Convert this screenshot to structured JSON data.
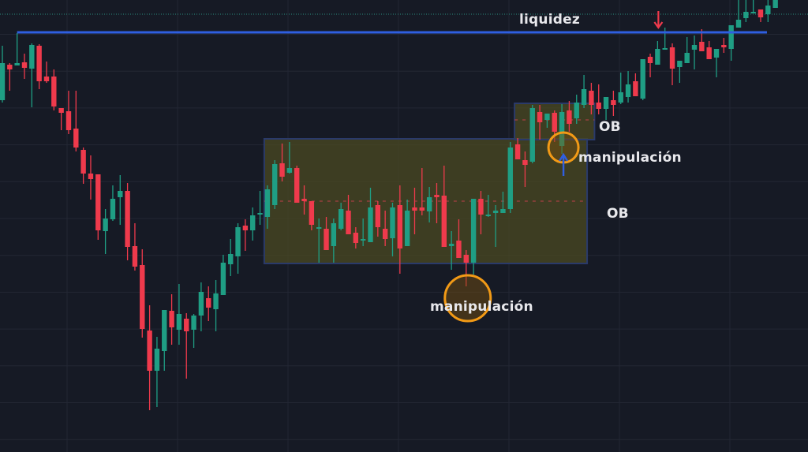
{
  "chart_data": {
    "type": "candlestick",
    "title": "",
    "xlabel": "",
    "ylabel": "",
    "ylim": [
      2.7,
      60
    ],
    "grid": true,
    "colors": {
      "up": "#1f9e84",
      "down": "#ef3a4c",
      "background": "#161a25",
      "grid": "#232734",
      "liquidity_line": "#2f5fe0",
      "zone_fill": "#4b4a22",
      "zone_border": "#2a3a6a",
      "circle": "#f29a16",
      "arrow_up": "#2f5fe0",
      "arrow_down": "#ef3a4c"
    },
    "candles": [
      [
        47.3,
        54.2,
        47.0,
        52.0
      ],
      [
        51.8,
        52.0,
        48.5,
        51.2
      ],
      [
        51.7,
        55.8,
        51.7,
        52.0
      ],
      [
        52.1,
        53.2,
        50.0,
        51.4
      ],
      [
        51.3,
        54.5,
        46.4,
        54.3
      ],
      [
        54.2,
        54.4,
        48.7,
        49.7
      ],
      [
        50.3,
        52.2,
        49.5,
        49.7
      ],
      [
        50.3,
        51.2,
        46.0,
        46.5
      ],
      [
        46.3,
        46.3,
        43.5,
        45.7
      ],
      [
        45.9,
        48.5,
        43.0,
        43.5
      ],
      [
        43.7,
        48.5,
        40.8,
        41.3
      ],
      [
        41.0,
        41.3,
        36.7,
        38.0
      ],
      [
        38.0,
        40.3,
        34.7,
        37.3
      ],
      [
        37.9,
        37.9,
        29.6,
        30.8
      ],
      [
        30.7,
        33.5,
        27.8,
        32.3
      ],
      [
        32.2,
        36.5,
        32.0,
        34.8
      ],
      [
        35.0,
        37.8,
        31.5,
        35.8
      ],
      [
        35.8,
        36.8,
        27.0,
        28.7
      ],
      [
        28.8,
        31.7,
        25.7,
        26.2
      ],
      [
        26.4,
        28.4,
        17.2,
        18.3
      ],
      [
        18.1,
        21.3,
        8.0,
        13.0
      ],
      [
        13.0,
        17.3,
        8.4,
        15.8
      ],
      [
        15.5,
        20.7,
        13.0,
        20.7
      ],
      [
        20.6,
        22.7,
        16.3,
        18.5
      ],
      [
        18.2,
        24.0,
        16.3,
        20.2
      ],
      [
        19.6,
        20.3,
        12.0,
        18.0
      ],
      [
        18.2,
        20.2,
        15.9,
        20.0
      ],
      [
        20.0,
        24.2,
        18.0,
        23.0
      ],
      [
        22.2,
        23.7,
        19.3,
        21.0
      ],
      [
        20.8,
        24.5,
        18.0,
        22.8
      ],
      [
        22.6,
        27.7,
        22.6,
        26.7
      ],
      [
        26.5,
        29.7,
        25.0,
        27.8
      ],
      [
        27.5,
        31.7,
        25.3,
        31.2
      ],
      [
        31.4,
        32.2,
        28.2,
        30.8
      ],
      [
        30.8,
        33.7,
        29.5,
        32.7
      ],
      [
        32.8,
        35.8,
        31.5,
        33.0
      ],
      [
        32.5,
        36.5,
        31.0,
        36.0
      ],
      [
        34.0,
        39.7,
        33.5,
        39.2
      ],
      [
        39.3,
        41.8,
        37.0,
        37.6
      ],
      [
        38.1,
        42.0,
        38.0,
        38.7
      ],
      [
        38.7,
        39.0,
        34.3,
        34.3
      ],
      [
        34.8,
        36.5,
        32.8,
        34.5
      ],
      [
        34.5,
        34.5,
        30.8,
        31.5
      ],
      [
        31.0,
        32.3,
        26.7,
        31.2
      ],
      [
        31.0,
        32.5,
        28.3,
        28.3
      ],
      [
        28.8,
        32.3,
        26.7,
        31.7
      ],
      [
        31.0,
        34.3,
        30.8,
        33.5
      ],
      [
        33.3,
        35.3,
        30.3,
        30.3
      ],
      [
        30.5,
        31.2,
        28.5,
        29.2
      ],
      [
        29.5,
        32.3,
        28.8,
        29.7
      ],
      [
        29.3,
        36.2,
        29.3,
        33.7
      ],
      [
        34.0,
        34.5,
        30.0,
        31.2
      ],
      [
        31.0,
        33.3,
        28.8,
        29.7
      ],
      [
        29.8,
        34.3,
        27.5,
        33.7
      ],
      [
        34.0,
        36.5,
        25.3,
        28.5
      ],
      [
        28.8,
        34.7,
        28.8,
        33.3
      ],
      [
        33.7,
        36.2,
        30.3,
        33.3
      ],
      [
        33.7,
        38.7,
        32.7,
        33.3
      ],
      [
        33.2,
        36.3,
        31.8,
        35.0
      ],
      [
        35.3,
        36.8,
        31.7,
        35.0
      ],
      [
        35.2,
        39.0,
        28.7,
        28.7
      ],
      [
        28.8,
        30.7,
        25.8,
        29.1
      ],
      [
        29.5,
        32.2,
        27.3,
        27.3
      ],
      [
        27.7,
        28.3,
        23.7,
        26.7
      ],
      [
        26.7,
        34.8,
        25.2,
        34.8
      ],
      [
        34.8,
        35.8,
        30.3,
        32.8
      ],
      [
        32.6,
        35.3,
        32.5,
        32.8
      ],
      [
        33.0,
        34.0,
        28.7,
        33.3
      ],
      [
        33.0,
        35.7,
        33.0,
        33.5
      ],
      [
        33.5,
        42.0,
        33.0,
        41.3
      ],
      [
        41.7,
        42.5,
        39.8,
        39.8
      ],
      [
        39.7,
        40.8,
        36.3,
        39.1
      ],
      [
        39.5,
        46.7,
        39.3,
        46.3
      ],
      [
        45.8,
        46.7,
        42.3,
        44.5
      ],
      [
        44.8,
        45.6,
        43.8,
        45.6
      ],
      [
        45.7,
        46.0,
        42.0,
        43.3
      ],
      [
        41.5,
        46.8,
        40.5,
        45.8
      ],
      [
        46.0,
        47.2,
        43.3,
        44.3
      ],
      [
        45.0,
        48.0,
        44.3,
        47.0
      ],
      [
        46.7,
        50.5,
        46.3,
        48.7
      ],
      [
        48.5,
        49.5,
        45.5,
        46.7
      ],
      [
        47.0,
        49.3,
        45.5,
        46.2
      ],
      [
        46.2,
        47.7,
        44.8,
        47.7
      ],
      [
        47.3,
        48.5,
        45.3,
        46.7
      ],
      [
        47.0,
        50.8,
        46.8,
        48.3
      ],
      [
        47.7,
        51.0,
        47.0,
        49.3
      ],
      [
        49.7,
        50.7,
        47.8,
        47.8
      ],
      [
        47.5,
        52.5,
        47.3,
        52.5
      ],
      [
        52.8,
        53.2,
        50.2,
        52.0
      ],
      [
        51.8,
        54.8,
        51.8,
        53.8
      ],
      [
        53.7,
        56.5,
        53.7,
        53.9
      ],
      [
        54.0,
        54.5,
        49.2,
        51.3
      ],
      [
        51.5,
        52.3,
        49.5,
        52.3
      ],
      [
        52.0,
        55.3,
        52.0,
        53.3
      ],
      [
        53.7,
        55.5,
        51.2,
        54.3
      ],
      [
        54.7,
        56.3,
        53.5,
        53.5
      ],
      [
        54.0,
        54.8,
        52.5,
        52.5
      ],
      [
        52.7,
        53.8,
        50.2,
        53.8
      ],
      [
        54.3,
        55.2,
        53.3,
        54.0
      ],
      [
        53.8,
        56.8,
        52.3,
        56.8
      ],
      [
        56.5,
        60.0,
        56.5,
        57.5
      ],
      [
        57.7,
        60.0,
        57.2,
        58.5
      ],
      [
        58.3,
        60.0,
        58.3,
        58.5
      ],
      [
        58.8,
        58.8,
        57.2,
        57.8
      ],
      [
        58.2,
        60.0,
        57.2,
        59.3
      ],
      [
        59.0,
        60.0,
        59.0,
        60.0
      ]
    ],
    "candle_fields": [
      "open",
      "high",
      "low",
      "close"
    ],
    "annotations": {
      "liquidity_line": {
        "price": 55.9,
        "from_candle": 2,
        "to_candle": 103,
        "label": "liquidez"
      },
      "dotted_level": {
        "price": 58.2
      },
      "sweep_arrow": {
        "candle": 89,
        "direction": "down"
      },
      "zones": [
        {
          "from_candle": 36,
          "to_candle": 79,
          "top": 42.4,
          "bottom": 26.6,
          "mid": 34.5,
          "label": "OB"
        },
        {
          "from_candle": 70,
          "to_candle": 80,
          "top": 46.9,
          "bottom": 42.3,
          "mid": 44.8,
          "label": "OB"
        }
      ],
      "manipulations": [
        {
          "candle": 63,
          "price": 22.2,
          "label": "manipulación"
        },
        {
          "candle": 76,
          "price": 41.3,
          "label": "manipulación",
          "arrow": "up"
        }
      ]
    }
  }
}
